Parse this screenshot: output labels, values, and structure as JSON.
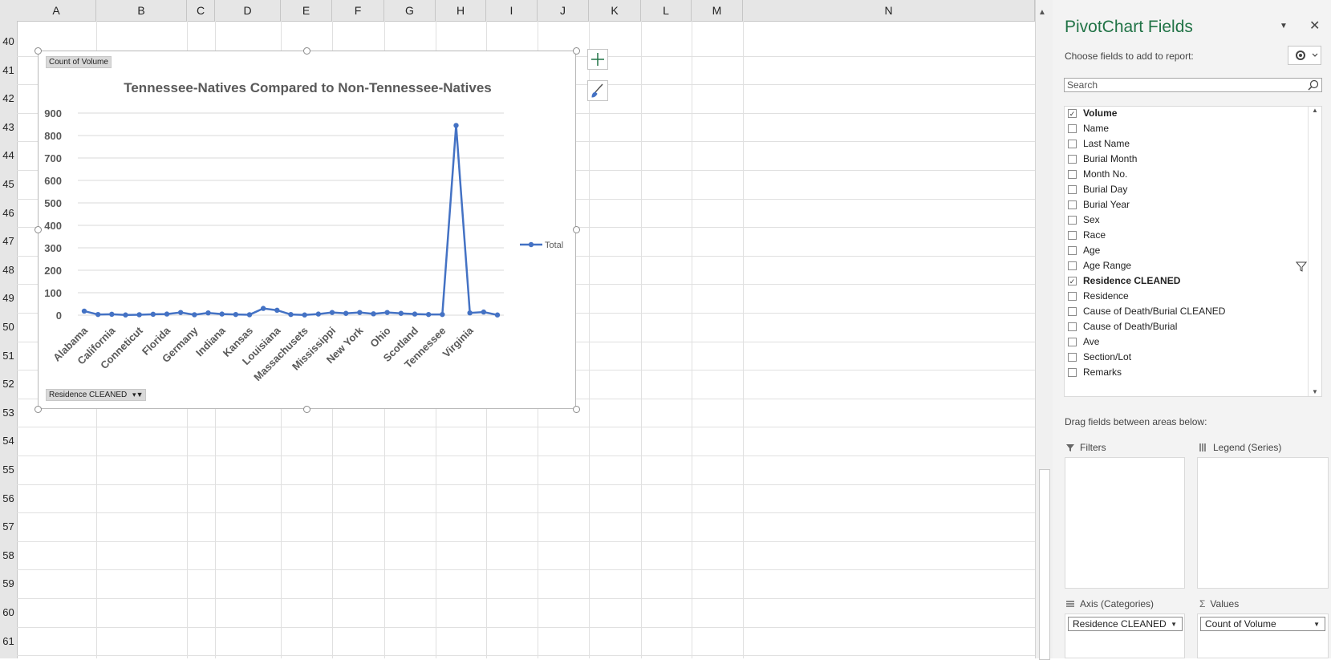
{
  "sheet": {
    "columns": [
      "A",
      "B",
      "C",
      "D",
      "E",
      "F",
      "G",
      "H",
      "I",
      "J",
      "K",
      "L",
      "M",
      "N"
    ],
    "rows": [
      "40",
      "41",
      "42",
      "43",
      "44",
      "45",
      "46",
      "47",
      "48",
      "49",
      "50",
      "51",
      "52",
      "53",
      "54",
      "55",
      "56",
      "57",
      "58",
      "59",
      "60",
      "61"
    ]
  },
  "chart": {
    "value_button": "Count of Volume",
    "axis_button": "Residence CLEANED",
    "legend_label": "Total"
  },
  "chart_data": {
    "type": "line",
    "title": "Tennessee-Natives Compared to Non-Tennessee-Natives",
    "xlabel": "",
    "ylabel": "",
    "ylim": [
      0,
      900
    ],
    "yticks": [
      0,
      100,
      200,
      300,
      400,
      500,
      600,
      700,
      800,
      900
    ],
    "x_tick_labels": [
      "Alabama",
      "California",
      "Conneticut",
      "Florida",
      "Germany",
      "Indiana",
      "Kansas",
      "Louisiana",
      "Massachusets",
      "Mississippi",
      "New York",
      "Ohio",
      "Scotland",
      "Tennessee",
      "Virginia"
    ],
    "grid": true,
    "legend_position": "right",
    "series": [
      {
        "name": "Total",
        "color": "#4472c4",
        "values": [
          18,
          3,
          4,
          1,
          2,
          4,
          5,
          12,
          2,
          10,
          5,
          3,
          2,
          30,
          22,
          3,
          1,
          5,
          12,
          8,
          12,
          6,
          12,
          8,
          5,
          3,
          3,
          845,
          10,
          14,
          1
        ]
      }
    ]
  },
  "panel": {
    "title": "PivotChart Fields",
    "subtitle": "Choose fields to add to report:",
    "search_placeholder": "Search",
    "fields": [
      {
        "label": "Volume",
        "checked": true
      },
      {
        "label": "Name",
        "checked": false
      },
      {
        "label": "Last Name",
        "checked": false
      },
      {
        "label": "Burial Month",
        "checked": false
      },
      {
        "label": "Month No.",
        "checked": false
      },
      {
        "label": "Burial Day",
        "checked": false
      },
      {
        "label": "Burial Year",
        "checked": false
      },
      {
        "label": "Sex",
        "checked": false
      },
      {
        "label": "Race",
        "checked": false
      },
      {
        "label": "Age",
        "checked": false
      },
      {
        "label": "Age Range",
        "checked": false
      },
      {
        "label": "Residence CLEANED",
        "checked": true
      },
      {
        "label": "Residence",
        "checked": false
      },
      {
        "label": "Cause of Death/Burial CLEANED",
        "checked": false
      },
      {
        "label": "Cause of Death/Burial",
        "checked": false
      },
      {
        "label": "Ave",
        "checked": false
      },
      {
        "label": "Section/Lot",
        "checked": false
      },
      {
        "label": "Remarks",
        "checked": false
      }
    ],
    "drag_hint": "Drag fields between areas below:",
    "areas": {
      "filters": "Filters",
      "legend": "Legend (Series)",
      "axis": "Axis (Categories)",
      "values": "Values",
      "axis_item": "Residence CLEANED",
      "values_item": "Count of Volume"
    }
  }
}
